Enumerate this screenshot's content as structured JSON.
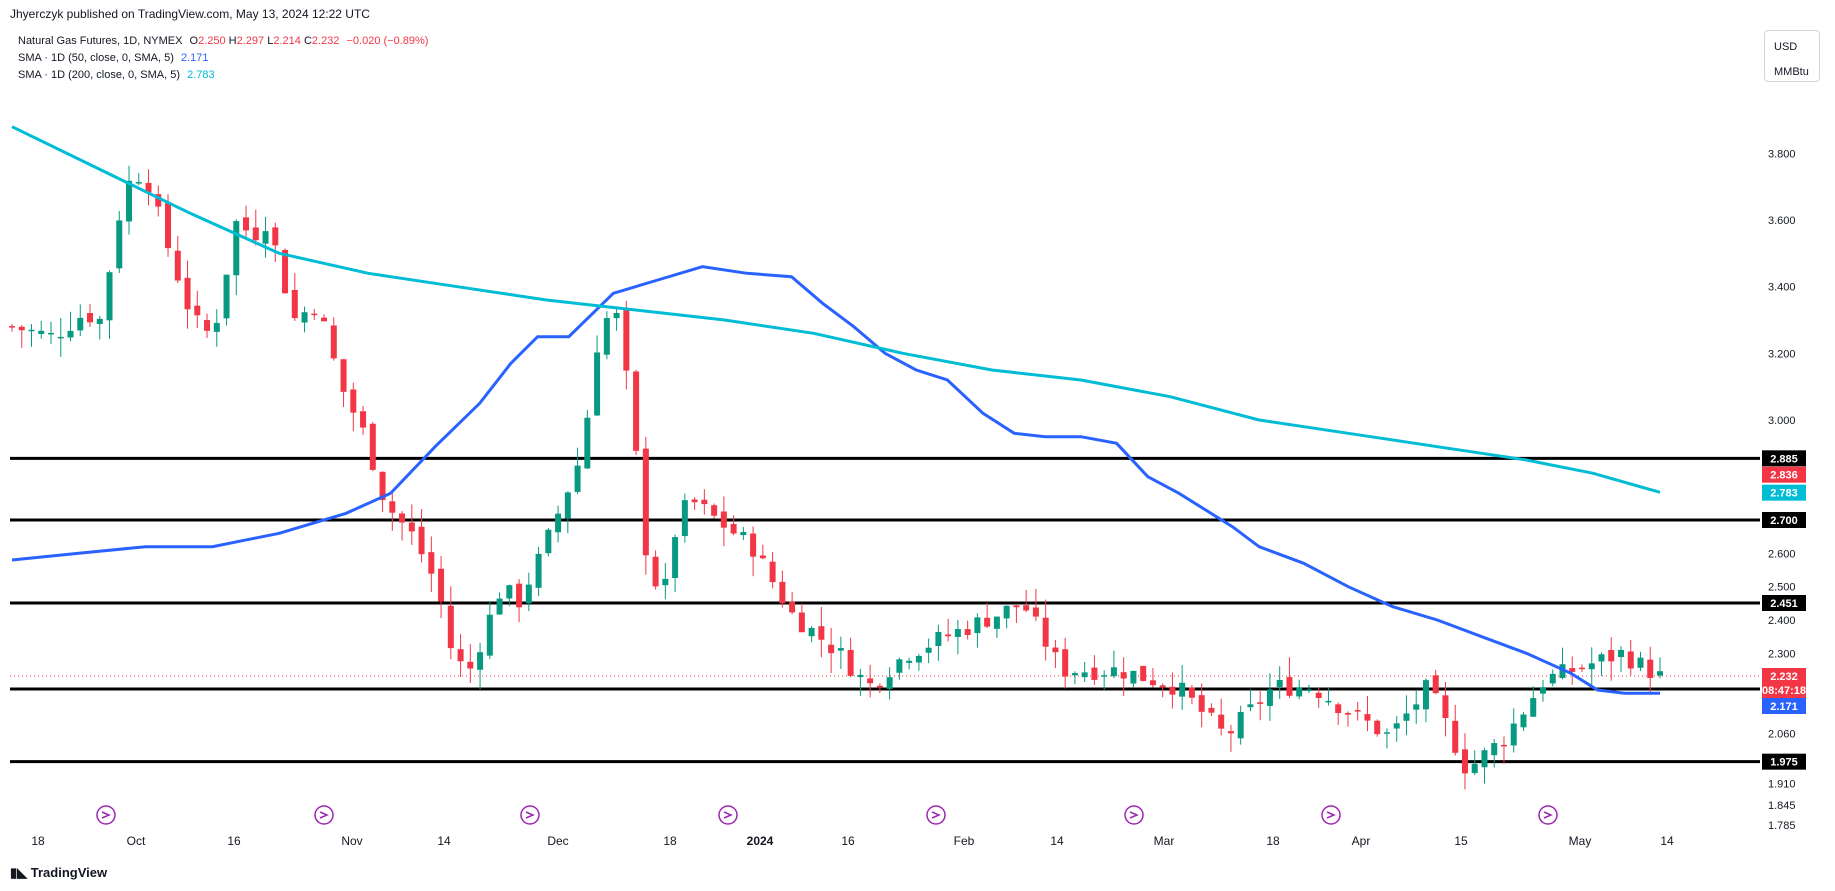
{
  "header": {
    "publish_text": "Jhyerczyk published on TradingView.com, May 13, 2024 12:22 UTC",
    "footer_logo": "TradingView"
  },
  "legend": {
    "symbol": "Natural Gas Futures, 1D, NYMEX",
    "o_label": "O",
    "o_value": "2.250",
    "h_label": "H",
    "h_value": "2.297",
    "l_label": "L",
    "l_value": "2.214",
    "c_label": "C",
    "c_value": "2.232",
    "change": "−0.020 (−0.89%)",
    "sma50_label": "SMA · 1D (50, close, 0, SMA, 5)",
    "sma50_value": "2.171",
    "sma200_label": "SMA · 1D (200, close, 0, SMA, 5)",
    "sma200_value": "2.783"
  },
  "unit_box": {
    "line1": "USD",
    "line2": "MMBtu"
  },
  "colors": {
    "up": "#089981",
    "down": "#f23645",
    "sma50": "#2962ff",
    "sma200": "#00bcd4",
    "level": "#000000"
  },
  "chart_data": {
    "type": "candlestick",
    "ylim": [
      1.785,
      3.9
    ],
    "y_ticks": [
      "3.800",
      "3.600",
      "3.400",
      "3.200",
      "3.000",
      "2.600",
      "2.500",
      "2.400",
      "2.300",
      "2.060",
      "1.910",
      "1.845",
      "1.785"
    ],
    "x_ticks": [
      "18",
      "Oct",
      "16",
      "Nov",
      "14",
      "Dec",
      "18",
      "2024",
      "16",
      "Feb",
      "14",
      "Mar",
      "18",
      "Apr",
      "15",
      "May",
      "14"
    ],
    "horizontal_levels": [
      {
        "value": 2.885,
        "label": "2.885"
      },
      {
        "value": 2.7,
        "label": "2.700"
      },
      {
        "value": 2.451,
        "label": "2.451"
      },
      {
        "value": 2.193,
        "label": "2.193"
      },
      {
        "value": 1.975,
        "label": "1.975"
      }
    ],
    "price_tags": [
      {
        "value": 2.836,
        "label": "2.836",
        "color": "#f23645"
      },
      {
        "value": 2.783,
        "label": "2.783",
        "color": "#00bcd4"
      },
      {
        "value": 2.232,
        "label": "2.232",
        "sublabel": "08:47:18",
        "color": "#f23645"
      },
      {
        "value": 2.171,
        "label": "2.171",
        "color": "#2962ff"
      }
    ],
    "last_price": 2.232,
    "series": [
      {
        "name": "SMA · 1D (50, close, 0, SMA, 5)",
        "points": [
          [
            0,
            2.58
          ],
          [
            15,
            2.6
          ],
          [
            30,
            2.62
          ],
          [
            45,
            2.62
          ],
          [
            60,
            2.66
          ],
          [
            75,
            2.72
          ],
          [
            85,
            2.78
          ],
          [
            95,
            2.92
          ],
          [
            105,
            3.05
          ],
          [
            112,
            3.17
          ],
          [
            118,
            3.25
          ],
          [
            125,
            3.25
          ],
          [
            135,
            3.38
          ],
          [
            145,
            3.42
          ],
          [
            155,
            3.46
          ],
          [
            165,
            3.44
          ],
          [
            175,
            3.43
          ],
          [
            182,
            3.35
          ],
          [
            189,
            3.28
          ],
          [
            196,
            3.2
          ],
          [
            203,
            3.15
          ],
          [
            210,
            3.12
          ],
          [
            218,
            3.02
          ],
          [
            225,
            2.96
          ],
          [
            232,
            2.95
          ],
          [
            240,
            2.95
          ],
          [
            248,
            2.93
          ],
          [
            255,
            2.83
          ],
          [
            262,
            2.78
          ],
          [
            268,
            2.73
          ],
          [
            274,
            2.68
          ],
          [
            280,
            2.62
          ],
          [
            290,
            2.57
          ],
          [
            300,
            2.5
          ],
          [
            310,
            2.44
          ],
          [
            320,
            2.4
          ],
          [
            330,
            2.35
          ],
          [
            340,
            2.3
          ],
          [
            350,
            2.24
          ],
          [
            356,
            2.19
          ],
          [
            362,
            2.18
          ],
          [
            370,
            2.18
          ]
        ]
      },
      {
        "name": "SMA · 1D (200, close, 0, SMA, 5)",
        "points": [
          [
            0,
            3.88
          ],
          [
            20,
            3.75
          ],
          [
            40,
            3.62
          ],
          [
            60,
            3.5
          ],
          [
            80,
            3.44
          ],
          [
            100,
            3.4
          ],
          [
            120,
            3.36
          ],
          [
            140,
            3.33
          ],
          [
            160,
            3.3
          ],
          [
            180,
            3.26
          ],
          [
            200,
            3.2
          ],
          [
            220,
            3.15
          ],
          [
            240,
            3.12
          ],
          [
            260,
            3.07
          ],
          [
            280,
            3.0
          ],
          [
            300,
            2.96
          ],
          [
            320,
            2.92
          ],
          [
            340,
            2.88
          ],
          [
            355,
            2.84
          ],
          [
            370,
            2.783
          ]
        ]
      }
    ]
  }
}
